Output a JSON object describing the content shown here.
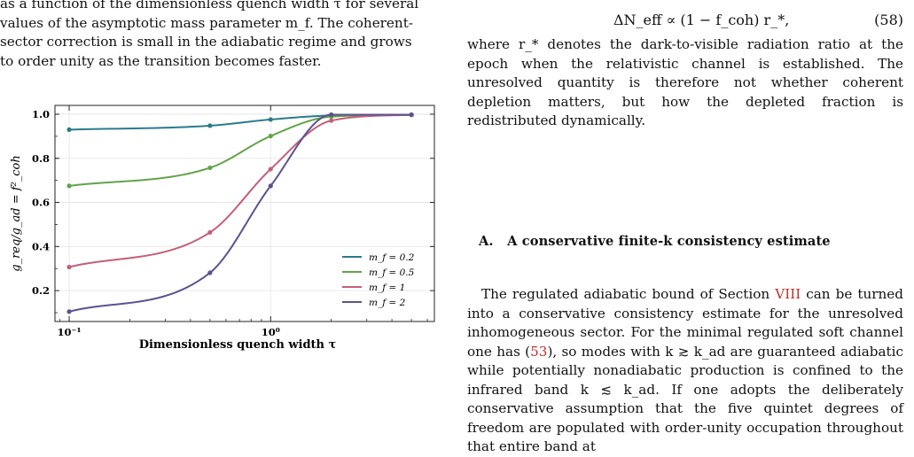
{
  "left_caption": {
    "lines": [
      "as a function of the dimensionless quench width τ for several",
      "values of the asymptotic mass parameter m_f. The coherent-",
      "sector correction is small in the adiabatic regime and grows",
      "to order unity as the transition becomes faster."
    ]
  },
  "chart_data": {
    "type": "line",
    "xlabel": "Dimensionless quench width τ",
    "ylabel": "g_req/g_ad = f²_coh",
    "xscale": "log",
    "xlim": [
      0.085,
      6.5
    ],
    "ylim": [
      0.06,
      1.04
    ],
    "x_ticks": [
      {
        "value": 0.1,
        "label": "10⁻¹"
      },
      {
        "value": 1,
        "label": "10⁰"
      }
    ],
    "y_ticks": [
      {
        "value": 0.2,
        "label": "0.2"
      },
      {
        "value": 0.4,
        "label": "0.4"
      },
      {
        "value": 0.6,
        "label": "0.6"
      },
      {
        "value": 0.8,
        "label": "0.8"
      },
      {
        "value": 1.0,
        "label": "1.0"
      }
    ],
    "legend_position": "lower-right",
    "x": [
      0.1,
      0.5,
      1,
      2,
      5
    ],
    "series": [
      {
        "name": "m_f = 0.2",
        "color": "#2b7b8c",
        "values": [
          0.93,
          0.948,
          0.976,
          0.994,
          0.997
        ]
      },
      {
        "name": "m_f = 0.5",
        "color": "#63a34a",
        "values": [
          0.675,
          0.757,
          0.901,
          0.989,
          0.997
        ]
      },
      {
        "name": "m_f = 1",
        "color": "#c2607a",
        "values": [
          0.307,
          0.464,
          0.751,
          0.971,
          0.997
        ]
      },
      {
        "name": "m_f = 2",
        "color": "#5a528f",
        "values": [
          0.105,
          0.281,
          0.675,
          0.998,
          0.998
        ]
      }
    ]
  },
  "right_text": {
    "equation": "ΔN_eff ∝ (1 − f_coh) r_*,",
    "equation_number": "(58)",
    "para1": "where r_* denotes the dark-to-visible radiation ratio at the epoch when the relativistic channel is established. The unresolved quantity is therefore not whether coherent depletion matters, but how the depleted fraction is redistributed dynamically.",
    "section_label": "A.",
    "section_title": "A conservative finite-k consistency estimate",
    "para2_a": "The regulated adiabatic bound of Section ",
    "para2_ref1": "VIII",
    "para2_b": " can be turned into a conservative consistency estimate for the unresolved inhomogeneous sector. For the minimal regulated soft channel one has (",
    "para2_ref2": "53",
    "para2_c": "), so modes with k ≳ k_ad are guaranteed adiabatic while potentially nonadiabatic production is confined to the infrared band k ≲ k_ad. If one adopts the deliberately conservative assumption that the five quintet degrees of freedom are populated with order-unity occupation throughout that entire band at"
  }
}
